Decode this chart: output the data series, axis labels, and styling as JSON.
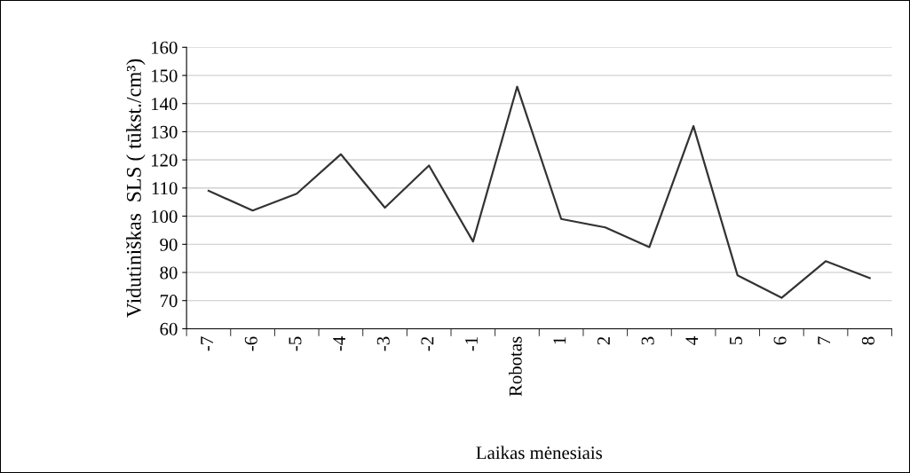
{
  "chart_data": {
    "type": "line",
    "xlabel": "Laikas mėnesiais",
    "ylabel": "Vidutiniškas  SLS ( tūkst./cm³)",
    "categories": [
      "-7",
      "-6",
      "-5",
      "-4",
      "-3",
      "-2",
      "-1",
      "Robotas",
      "1",
      "2",
      "3",
      "4",
      "5",
      "6",
      "7",
      "8"
    ],
    "series": [
      {
        "color": "#333333",
        "values": [
          109,
          102,
          108,
          122,
          103,
          118,
          91,
          146,
          99,
          96,
          89,
          132,
          79,
          71,
          84,
          78
        ]
      }
    ],
    "ylim": [
      60,
      160
    ],
    "yticks": [
      60,
      70,
      80,
      90,
      100,
      110,
      120,
      130,
      140,
      150,
      160
    ],
    "grid": "y",
    "marker": "none",
    "line_style": "solid",
    "legend": false
  }
}
